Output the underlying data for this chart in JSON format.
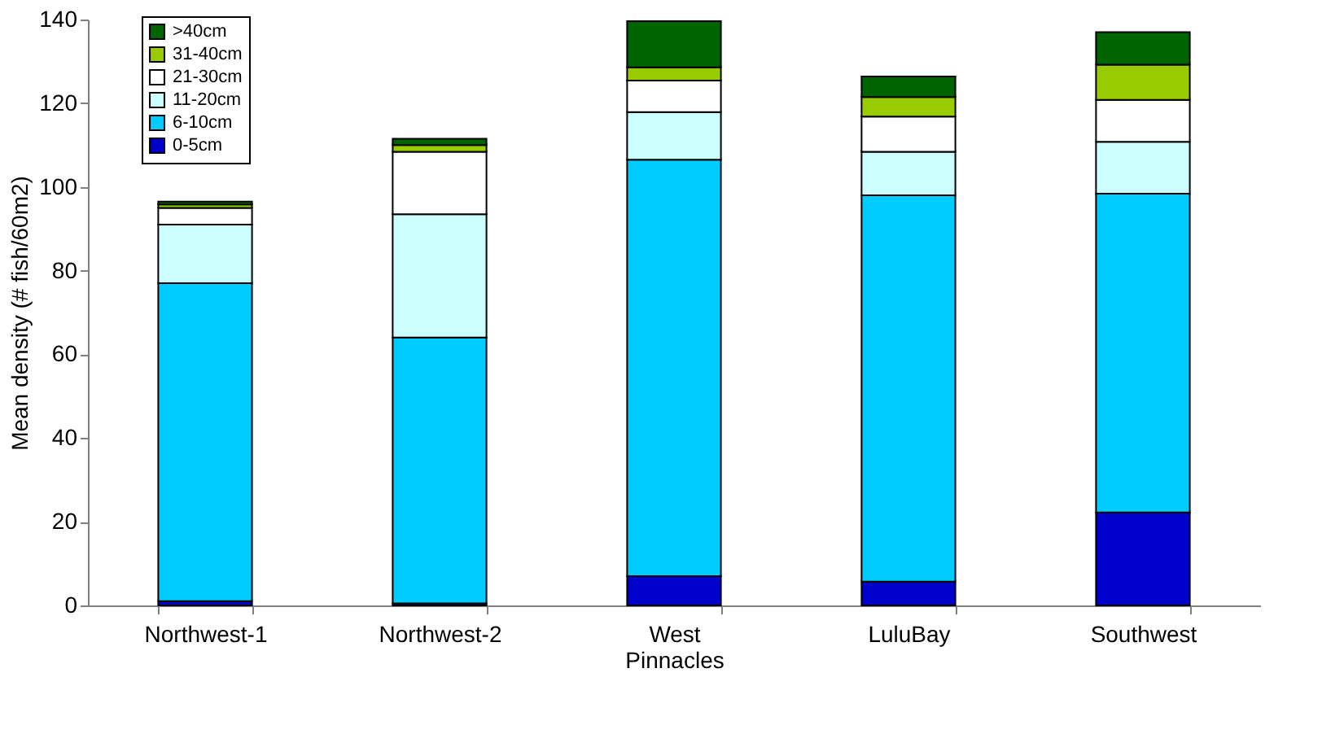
{
  "chart_data": {
    "type": "bar",
    "stacked": true,
    "ylabel": "Mean density (# fish/60m2)",
    "categories": [
      "Northwest-1",
      "Northwest-2",
      "West Pinnacles",
      "LuluBay",
      "Southwest"
    ],
    "series": [
      {
        "name": "0-5cm",
        "color": "#0000cc",
        "values": [
          1,
          0.5,
          7,
          5.7,
          22.2
        ]
      },
      {
        "name": "6-10cm",
        "color": "#00ccff",
        "values": [
          76,
          63.5,
          99.5,
          92.3,
          76.2
        ]
      },
      {
        "name": "11-20cm",
        "color": "#ccffff",
        "values": [
          14,
          29.5,
          11.4,
          10.4,
          12.4
        ]
      },
      {
        "name": "21-30cm",
        "color": "#ffffff",
        "values": [
          4,
          14.9,
          7.5,
          8.4,
          10
        ]
      },
      {
        "name": "31-40cm",
        "color": "#99cc00",
        "values": [
          0.8,
          1.6,
          3.2,
          4.7,
          8.4
        ]
      },
      {
        "name": ">40cm",
        "color": "#006400",
        "values": [
          0.7,
          1.5,
          11,
          4.9,
          7.8
        ]
      }
    ],
    "ylim": [
      0,
      140
    ],
    "yticks": [
      0,
      20,
      40,
      60,
      80,
      100,
      120,
      140
    ],
    "grid": false,
    "legend": "top left"
  }
}
